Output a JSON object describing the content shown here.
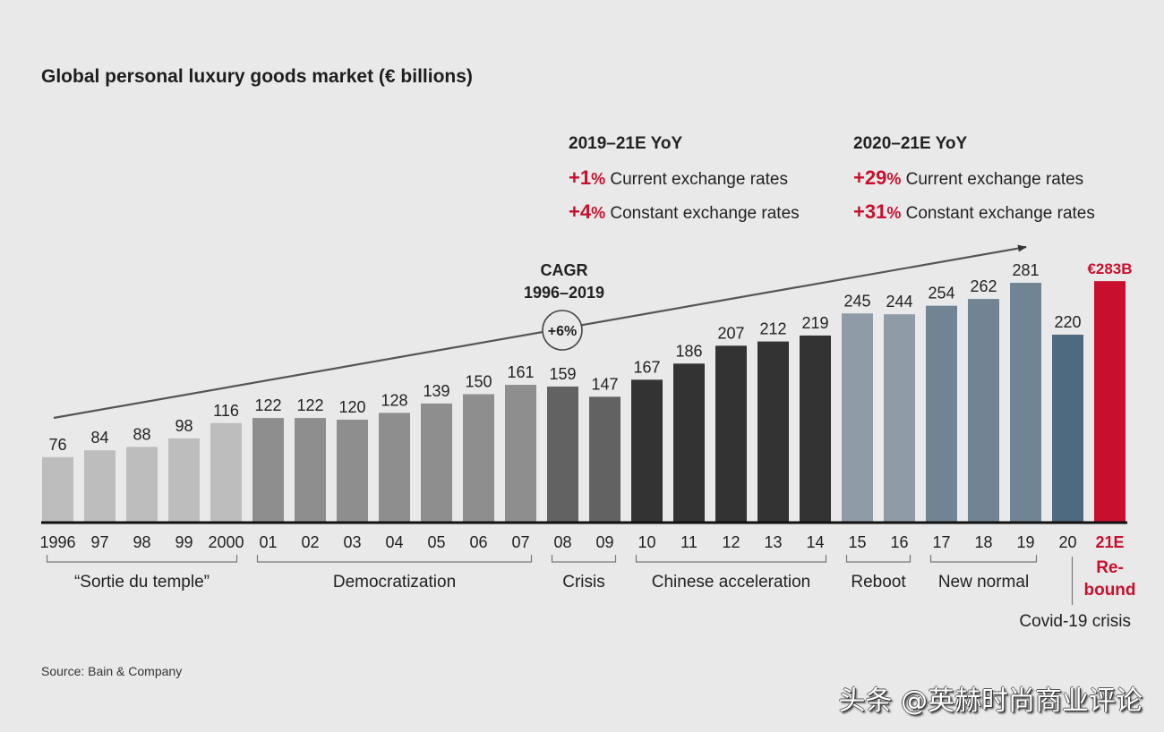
{
  "chart_data": {
    "type": "bar",
    "title": "Global personal luxury goods market (€ billions)",
    "xlabel": "",
    "ylabel": "€ billions",
    "ylim": [
      0,
      300
    ],
    "grid": false,
    "categories": [
      "1996",
      "97",
      "98",
      "99",
      "2000",
      "01",
      "02",
      "03",
      "04",
      "05",
      "06",
      "07",
      "08",
      "09",
      "10",
      "11",
      "12",
      "13",
      "14",
      "15",
      "16",
      "17",
      "18",
      "19",
      "20",
      "21E"
    ],
    "values": [
      76,
      84,
      88,
      98,
      116,
      122,
      122,
      120,
      128,
      139,
      150,
      161,
      159,
      147,
      167,
      186,
      207,
      212,
      219,
      245,
      244,
      254,
      262,
      281,
      220,
      283
    ],
    "value_labels": [
      "76",
      "84",
      "88",
      "98",
      "116",
      "122",
      "122",
      "120",
      "128",
      "139",
      "150",
      "161",
      "159",
      "147",
      "167",
      "186",
      "207",
      "212",
      "219",
      "245",
      "244",
      "254",
      "262",
      "281",
      "220",
      "€283B"
    ],
    "bar_colors": [
      "#bdbdbd",
      "#bdbdbd",
      "#bdbdbd",
      "#bdbdbd",
      "#bdbdbd",
      "#8e8e8e",
      "#8e8e8e",
      "#8e8e8e",
      "#8e8e8e",
      "#8e8e8e",
      "#8e8e8e",
      "#8e8e8e",
      "#626262",
      "#626262",
      "#333333",
      "#333333",
      "#333333",
      "#333333",
      "#333333",
      "#8f9ca8",
      "#8f9ca8",
      "#718494",
      "#718494",
      "#718494",
      "#4e6a80",
      "#c8102e"
    ],
    "highlight_color": "#c8102e",
    "periods": [
      {
        "label": "“Sortie du temple”",
        "from": 0,
        "to": 4
      },
      {
        "label": "Democratization",
        "from": 5,
        "to": 11
      },
      {
        "label": "Crisis",
        "from": 12,
        "to": 13
      },
      {
        "label": "Chinese acceleration",
        "from": 14,
        "to": 18
      },
      {
        "label": "Reboot",
        "from": 19,
        "to": 20
      },
      {
        "label": "New normal",
        "from": 21,
        "to": 23
      }
    ],
    "covid_label": "Covid-19 crisis",
    "rebound_label": [
      "Re-",
      "bound"
    ],
    "cagr": {
      "title": "CAGR",
      "period": "1996–2019",
      "value": "+6%"
    },
    "annotations": [
      {
        "header": "2019–21E YoY",
        "rows": [
          {
            "value": "+1",
            "unit": "%",
            "text": "Current exchange rates"
          },
          {
            "value": "+4",
            "unit": "%",
            "text": "Constant exchange rates"
          }
        ]
      },
      {
        "header": "2020–21E YoY",
        "rows": [
          {
            "value": "+29",
            "unit": "%",
            "text": "Current exchange rates"
          },
          {
            "value": "+31",
            "unit": "%",
            "text": "Constant exchange rates"
          }
        ]
      }
    ]
  },
  "source": "Source: Bain & Company",
  "watermark": "头条 @英赫时尚商业评论"
}
